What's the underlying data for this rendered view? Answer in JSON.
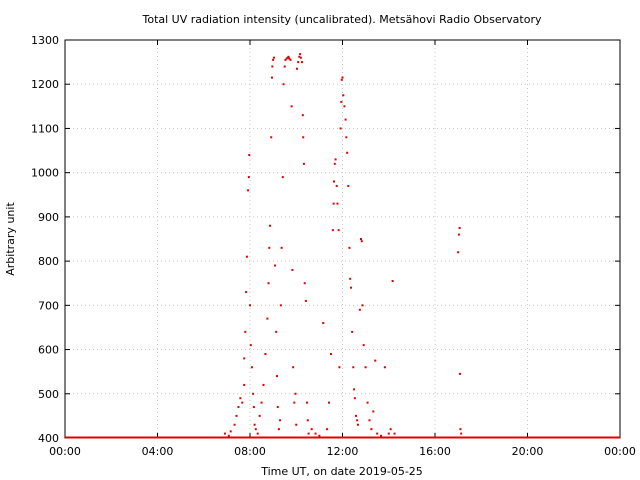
{
  "chart_data": {
    "type": "scatter",
    "title": "Total UV radiation intensity (uncalibrated). Metsähovi Radio Observatory",
    "xlabel": "Time UT, on date 2019-05-25",
    "ylabel": "Arbitrary unit",
    "xlim": [
      "00:00",
      "24:00"
    ],
    "ylim": [
      400,
      1300
    ],
    "x_ticks": [
      "00:00",
      "04:00",
      "08:00",
      "12:00",
      "16:00",
      "20:00",
      "00:00"
    ],
    "y_ticks": [
      400,
      500,
      600,
      700,
      800,
      900,
      1000,
      1100,
      1200,
      1300
    ],
    "grid": true,
    "marker_color": "#e00000",
    "baseline": {
      "value": 400,
      "from": "00:00",
      "to": "24:00"
    },
    "series": [
      {
        "points": [
          [
            "06:55",
            410
          ],
          [
            "07:05",
            405
          ],
          [
            "07:10",
            415
          ],
          [
            "07:20",
            430
          ],
          [
            "07:25",
            450
          ],
          [
            "07:30",
            470
          ],
          [
            "07:35",
            490
          ],
          [
            "07:40",
            480
          ],
          [
            "07:45",
            520
          ],
          [
            "07:45",
            580
          ],
          [
            "07:48",
            640
          ],
          [
            "07:50",
            730
          ],
          [
            "07:52",
            810
          ],
          [
            "07:55",
            960
          ],
          [
            "07:57",
            990
          ],
          [
            "07:58",
            1040
          ],
          [
            "08:00",
            700
          ],
          [
            "08:02",
            610
          ],
          [
            "08:05",
            560
          ],
          [
            "08:08",
            500
          ],
          [
            "08:10",
            470
          ],
          [
            "08:12",
            430
          ],
          [
            "08:15",
            420
          ],
          [
            "08:20",
            410
          ],
          [
            "08:25",
            450
          ],
          [
            "08:30",
            480
          ],
          [
            "08:35",
            520
          ],
          [
            "08:40",
            590
          ],
          [
            "08:45",
            670
          ],
          [
            "08:48",
            750
          ],
          [
            "08:50",
            830
          ],
          [
            "08:52",
            880
          ],
          [
            "08:55",
            1080
          ],
          [
            "08:57",
            1215
          ],
          [
            "08:58",
            1240
          ],
          [
            "09:00",
            1255
          ],
          [
            "09:02",
            1260
          ],
          [
            "09:05",
            790
          ],
          [
            "09:08",
            640
          ],
          [
            "09:10",
            540
          ],
          [
            "09:12",
            470
          ],
          [
            "09:15",
            420
          ],
          [
            "09:18",
            440
          ],
          [
            "09:20",
            700
          ],
          [
            "09:22",
            830
          ],
          [
            "09:25",
            990
          ],
          [
            "09:27",
            1200
          ],
          [
            "09:30",
            1240
          ],
          [
            "09:32",
            1255
          ],
          [
            "09:35",
            1258
          ],
          [
            "09:38",
            1260
          ],
          [
            "09:40",
            1262
          ],
          [
            "09:42",
            1258
          ],
          [
            "09:45",
            1255
          ],
          [
            "09:48",
            1150
          ],
          [
            "09:50",
            780
          ],
          [
            "09:52",
            560
          ],
          [
            "09:55",
            480
          ],
          [
            "09:58",
            500
          ],
          [
            "10:00",
            430
          ],
          [
            "10:02",
            1235
          ],
          [
            "10:05",
            1250
          ],
          [
            "10:08",
            1262
          ],
          [
            "10:10",
            1268
          ],
          [
            "10:12",
            1260
          ],
          [
            "10:15",
            1250
          ],
          [
            "10:17",
            1130
          ],
          [
            "10:18",
            1080
          ],
          [
            "10:20",
            1020
          ],
          [
            "10:22",
            750
          ],
          [
            "10:25",
            710
          ],
          [
            "10:28",
            480
          ],
          [
            "10:30",
            440
          ],
          [
            "10:32",
            410
          ],
          [
            "10:40",
            420
          ],
          [
            "10:50",
            410
          ],
          [
            "11:00",
            405
          ],
          [
            "11:10",
            660
          ],
          [
            "11:20",
            420
          ],
          [
            "11:25",
            480
          ],
          [
            "11:30",
            590
          ],
          [
            "11:35",
            870
          ],
          [
            "11:37",
            930
          ],
          [
            "11:38",
            980
          ],
          [
            "11:40",
            1020
          ],
          [
            "11:42",
            1030
          ],
          [
            "11:45",
            970
          ],
          [
            "11:47",
            930
          ],
          [
            "11:50",
            870
          ],
          [
            "11:52",
            560
          ],
          [
            "11:55",
            1100
          ],
          [
            "11:57",
            1160
          ],
          [
            "11:58",
            1210
          ],
          [
            "12:00",
            1215
          ],
          [
            "12:02",
            1175
          ],
          [
            "12:05",
            1150
          ],
          [
            "12:08",
            1120
          ],
          [
            "12:10",
            1080
          ],
          [
            "12:12",
            1045
          ],
          [
            "12:15",
            970
          ],
          [
            "12:18",
            830
          ],
          [
            "12:20",
            760
          ],
          [
            "12:22",
            740
          ],
          [
            "12:25",
            640
          ],
          [
            "12:28",
            560
          ],
          [
            "12:30",
            510
          ],
          [
            "12:32",
            490
          ],
          [
            "12:35",
            450
          ],
          [
            "12:38",
            440
          ],
          [
            "12:40",
            430
          ],
          [
            "12:45",
            690
          ],
          [
            "12:48",
            850
          ],
          [
            "12:50",
            845
          ],
          [
            "12:52",
            700
          ],
          [
            "12:55",
            610
          ],
          [
            "13:00",
            560
          ],
          [
            "13:05",
            480
          ],
          [
            "13:10",
            440
          ],
          [
            "13:15",
            420
          ],
          [
            "13:20",
            460
          ],
          [
            "13:25",
            575
          ],
          [
            "13:30",
            410
          ],
          [
            "13:40",
            405
          ],
          [
            "13:50",
            560
          ],
          [
            "14:00",
            410
          ],
          [
            "14:05",
            420
          ],
          [
            "14:10",
            755
          ],
          [
            "14:15",
            410
          ],
          [
            "17:00",
            820
          ],
          [
            "17:02",
            860
          ],
          [
            "17:04",
            875
          ],
          [
            "17:05",
            545
          ],
          [
            "17:06",
            420
          ],
          [
            "17:08",
            410
          ]
        ]
      }
    ]
  }
}
